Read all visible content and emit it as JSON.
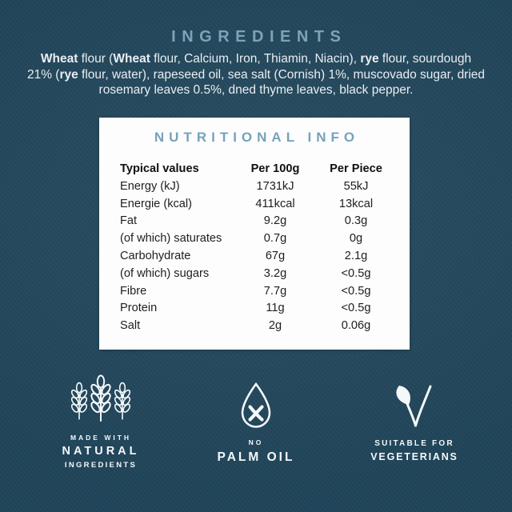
{
  "colors": {
    "background": "#20455a",
    "heading": "#7ba4ba",
    "card_title": "#74a3bb",
    "body_text": "#e9eef2",
    "table_text": "#1e1e1e",
    "card_bg": "#fdfdfd",
    "icon": "#f4f8fa"
  },
  "ingredients": {
    "title": "INGREDIENTS",
    "lines": [
      [
        {
          "text": "Wheat",
          "bold": true
        },
        {
          "text": " flour (",
          "bold": false
        },
        {
          "text": "Wheat",
          "bold": true
        },
        {
          "text": " flour, Calcium, Iron, Thiamin, Niacin), ",
          "bold": false
        },
        {
          "text": "rye",
          "bold": true
        },
        {
          "text": " flour, sourdough",
          "bold": false
        }
      ],
      [
        {
          "text": "21% (",
          "bold": false
        },
        {
          "text": "rye",
          "bold": true
        },
        {
          "text": " flour, water), rapeseed oil, sea salt (Cornish) 1%, muscovado sugar, dried",
          "bold": false
        }
      ],
      [
        {
          "text": "rosemary leaves 0.5%, dned thyme leaves, black pepper.",
          "bold": false
        }
      ]
    ]
  },
  "nutrition": {
    "title": "NUTRITIONAL INFO",
    "columns": [
      "Typical values",
      "Per 100g",
      "Per Piece"
    ],
    "rows": [
      {
        "label": "Energy (kJ)",
        "per_100g": "1731kJ",
        "per_piece": "55kJ"
      },
      {
        "label": "Energie (kcal)",
        "per_100g": "411kcal",
        "per_piece": "13kcal"
      },
      {
        "label": "Fat",
        "per_100g": "9.2g",
        "per_piece": "0.3g"
      },
      {
        "label": "(of which) saturates",
        "per_100g": "0.7g",
        "per_piece": "0g"
      },
      {
        "label": "Carbohydrate",
        "per_100g": "67g",
        "per_piece": "2.1g"
      },
      {
        "label": "(of which) sugars",
        "per_100g": "3.2g",
        "per_piece": "<0.5g"
      },
      {
        "label": "Fibre",
        "per_100g": "7.7g",
        "per_piece": "<0.5g"
      },
      {
        "label": "Protein",
        "per_100g": "11g",
        "per_piece": "<0.5g"
      },
      {
        "label": "Salt",
        "per_100g": "2g",
        "per_piece": "0.06g"
      }
    ]
  },
  "badges": [
    {
      "icon": "wheat-icon",
      "lines": [
        "MADE WITH",
        "NATURAL",
        "INGREDIENTS"
      ]
    },
    {
      "icon": "no-palm-oil-icon",
      "lines": [
        "NO",
        "PALM OIL"
      ]
    },
    {
      "icon": "vegetarian-leaf-icon",
      "lines": [
        "SUITABLE FOR",
        "VEGETERIANS"
      ]
    }
  ]
}
